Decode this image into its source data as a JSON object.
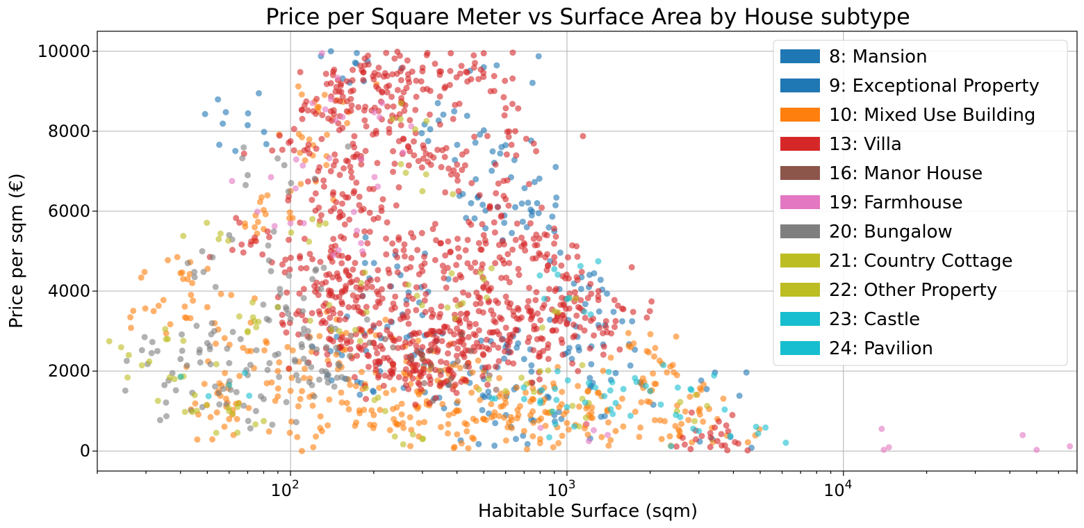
{
  "chart_data": {
    "type": "scatter",
    "title": "Price per Square Meter vs Surface Area by House subtype",
    "xlabel": "Habitable Surface (sqm)",
    "ylabel": "Price per sqm (€)",
    "x_scale": "log",
    "xlim": [
      20,
      70000
    ],
    "ylim": [
      -500,
      10500
    ],
    "x_ticks": [
      {
        "value": 100,
        "base": "10",
        "exp": "2"
      },
      {
        "value": 1000,
        "base": "10",
        "exp": "3"
      },
      {
        "value": 10000,
        "base": "10",
        "exp": "4"
      }
    ],
    "y_ticks": [
      {
        "value": 0,
        "label": "0"
      },
      {
        "value": 2000,
        "label": "2000"
      },
      {
        "value": 4000,
        "label": "4000"
      },
      {
        "value": 6000,
        "label": "6000"
      },
      {
        "value": 8000,
        "label": "8000"
      },
      {
        "value": 10000,
        "label": "10000"
      }
    ],
    "grid": true,
    "legend_position": "top-right",
    "series": [
      {
        "name": "8: Mansion",
        "color": "#1f77b4",
        "points": [
          [
            120,
            2600
          ],
          [
            200,
            3100
          ],
          [
            280,
            2400
          ],
          [
            350,
            2000
          ],
          [
            500,
            1800
          ],
          [
            600,
            2600
          ],
          [
            800,
            1500
          ],
          [
            3200,
            1550
          ],
          [
            3900,
            350
          ],
          [
            140,
            10000
          ],
          [
            500,
            9600
          ],
          [
            900,
            5500
          ]
        ]
      },
      {
        "name": "9: Exceptional Property",
        "color": "#1f77b4",
        "points": [
          [
            70,
            8150
          ],
          [
            190,
            9750
          ],
          [
            320,
            8050
          ],
          [
            450,
            6200
          ],
          [
            600,
            7650
          ],
          [
            650,
            6100
          ],
          [
            780,
            6200
          ],
          [
            1200,
            4100
          ],
          [
            1300,
            3150
          ],
          [
            1500,
            1950
          ],
          [
            700,
            2300
          ],
          [
            300,
            3400
          ],
          [
            400,
            1200
          ],
          [
            900,
            900
          ],
          [
            1100,
            2600
          ],
          [
            250,
            4400
          ],
          [
            180,
            1700
          ],
          [
            550,
            700
          ]
        ]
      },
      {
        "name": "10: Mixed Use Building",
        "color": "#ff7f0e",
        "points": [
          [
            32,
            3500
          ],
          [
            40,
            4450
          ],
          [
            50,
            3600
          ],
          [
            65,
            1200
          ],
          [
            80,
            5550
          ],
          [
            100,
            6500
          ],
          [
            110,
            7850
          ],
          [
            125,
            8600
          ],
          [
            160,
            1200
          ],
          [
            200,
            900
          ],
          [
            240,
            700
          ],
          [
            300,
            1500
          ],
          [
            350,
            600
          ],
          [
            400,
            1000
          ],
          [
            500,
            800
          ],
          [
            600,
            1200
          ],
          [
            700,
            500
          ],
          [
            800,
            300
          ],
          [
            1000,
            700
          ],
          [
            1200,
            900
          ],
          [
            1500,
            500
          ],
          [
            1700,
            2600
          ],
          [
            2000,
            1500
          ],
          [
            2500,
            1900
          ],
          [
            3000,
            1000
          ],
          [
            3500,
            800
          ],
          [
            2200,
            300
          ],
          [
            1400,
            1000
          ],
          [
            900,
            1600
          ],
          [
            150,
            2200
          ],
          [
            180,
            3000
          ],
          [
            270,
            1900
          ],
          [
            330,
            2500
          ],
          [
            420,
            1800
          ],
          [
            460,
            300
          ],
          [
            750,
            1300
          ],
          [
            110,
            1500
          ],
          [
            90,
            2000
          ],
          [
            70,
            2500
          ],
          [
            55,
            1500
          ],
          [
            60,
            800
          ],
          [
            130,
            500
          ]
        ]
      },
      {
        "name": "13: Villa",
        "color": "#d62728",
        "points": [
          [
            100,
            7750
          ],
          [
            140,
            9200
          ],
          [
            140,
            8500
          ],
          [
            140,
            7000
          ],
          [
            140,
            6000
          ],
          [
            140,
            5000
          ],
          [
            140,
            4000
          ],
          [
            140,
            3000
          ],
          [
            160,
            8500
          ],
          [
            180,
            7300
          ],
          [
            200,
            9300
          ],
          [
            220,
            9450
          ],
          [
            250,
            9500
          ],
          [
            260,
            8650
          ],
          [
            300,
            9500
          ],
          [
            380,
            9950
          ],
          [
            450,
            9300
          ],
          [
            500,
            9950
          ],
          [
            230,
            8250
          ],
          [
            270,
            7500
          ],
          [
            320,
            7400
          ],
          [
            400,
            6900
          ],
          [
            500,
            5400
          ],
          [
            600,
            6300
          ],
          [
            650,
            8000
          ],
          [
            700,
            5200
          ],
          [
            900,
            4850
          ],
          [
            1100,
            3600
          ],
          [
            1300,
            4000
          ],
          [
            1500,
            3250
          ],
          [
            1000,
            3200
          ],
          [
            850,
            3800
          ],
          [
            750,
            3400
          ],
          [
            550,
            4700
          ],
          [
            480,
            3500
          ],
          [
            420,
            2800
          ],
          [
            360,
            3100
          ],
          [
            300,
            2600
          ],
          [
            250,
            3300
          ],
          [
            210,
            2900
          ],
          [
            190,
            2400
          ],
          [
            170,
            3600
          ],
          [
            160,
            2700
          ],
          [
            150,
            4300
          ],
          [
            300,
            4500
          ],
          [
            350,
            5200
          ],
          [
            240,
            5000
          ],
          [
            200,
            5800
          ],
          [
            170,
            6500
          ],
          [
            180,
            4100
          ],
          [
            230,
            2000
          ],
          [
            260,
            1800
          ],
          [
            320,
            2200
          ],
          [
            380,
            2000
          ],
          [
            440,
            3900
          ],
          [
            520,
            2100
          ],
          [
            620,
            2900
          ],
          [
            720,
            3600
          ],
          [
            820,
            2500
          ],
          [
            120,
            4800
          ],
          [
            110,
            3400
          ],
          [
            75,
            5250
          ],
          [
            2800,
            50
          ],
          [
            3300,
            100
          ],
          [
            3500,
            250
          ],
          [
            210,
            3700
          ],
          [
            330,
            3000
          ],
          [
            270,
            2200
          ],
          [
            410,
            4400
          ],
          [
            460,
            2600
          ],
          [
            580,
            3300
          ]
        ]
      },
      {
        "name": "16: Manor House",
        "color": "#8c564b",
        "points": [
          [
            220,
            2800
          ],
          [
            300,
            2300
          ],
          [
            380,
            1800
          ],
          [
            450,
            2500
          ]
        ]
      },
      {
        "name": "19: Farmhouse",
        "color": "#e377c2",
        "points": [
          [
            130,
            9950
          ],
          [
            140,
            8800
          ],
          [
            85,
            6850
          ],
          [
            100,
            5700
          ],
          [
            210,
            8350
          ],
          [
            180,
            7300
          ],
          [
            180,
            5200
          ],
          [
            1200,
            250
          ],
          [
            14000,
            30
          ],
          [
            50000,
            30
          ]
        ]
      },
      {
        "name": "20: Bungalow",
        "color": "#7f7f7f",
        "points": [
          [
            35,
            1650
          ],
          [
            33,
            2500
          ],
          [
            40,
            2300
          ],
          [
            45,
            4350
          ],
          [
            50,
            2700
          ],
          [
            55,
            1450
          ],
          [
            60,
            5400
          ],
          [
            70,
            6900
          ],
          [
            75,
            1000
          ],
          [
            80,
            1300
          ],
          [
            85,
            4500
          ],
          [
            90,
            3600
          ],
          [
            95,
            7150
          ],
          [
            100,
            3300
          ],
          [
            110,
            2600
          ],
          [
            120,
            4300
          ],
          [
            130,
            2000
          ],
          [
            140,
            3100
          ],
          [
            160,
            1800
          ],
          [
            70,
            1900
          ],
          [
            60,
            2200
          ],
          [
            48,
            1100
          ],
          [
            52,
            3200
          ],
          [
            66,
            2800
          ],
          [
            88,
            2400
          ],
          [
            105,
            1900
          ],
          [
            115,
            2200
          ],
          [
            135,
            2600
          ]
        ]
      },
      {
        "name": "21: Country Cottage",
        "color": "#bcbd22",
        "points": [
          [
            26,
            2400
          ],
          [
            36,
            2800
          ],
          [
            45,
            1400
          ],
          [
            55,
            5300
          ],
          [
            70,
            3000
          ],
          [
            80,
            750
          ],
          [
            120,
            5800
          ],
          [
            180,
            4200
          ],
          [
            250,
            8300
          ],
          [
            300,
            6500
          ],
          [
            500,
            4300
          ],
          [
            800,
            2000
          ],
          [
            1200,
            1200
          ],
          [
            2500,
            1000
          ]
        ]
      },
      {
        "name": "22: Other Property",
        "color": "#bcbd22",
        "points": [
          [
            38,
            1800
          ],
          [
            60,
            1000
          ],
          [
            90,
            3600
          ],
          [
            150,
            3000
          ],
          [
            220,
            1000
          ],
          [
            300,
            300
          ],
          [
            420,
            3700
          ],
          [
            600,
            1500
          ],
          [
            900,
            3500
          ]
        ]
      },
      {
        "name": "23: Castle",
        "color": "#17becf",
        "points": [
          [
            60,
            1650
          ],
          [
            900,
            4550
          ],
          [
            1000,
            3800
          ],
          [
            1200,
            1700
          ],
          [
            1600,
            1550
          ],
          [
            2800,
            1550
          ],
          [
            3000,
            500
          ]
        ]
      },
      {
        "name": "24: Pavilion",
        "color": "#17becf",
        "points": [
          [
            700,
            1300
          ],
          [
            800,
            1200
          ],
          [
            1000,
            1100
          ],
          [
            1500,
            1200
          ],
          [
            2000,
            1500
          ],
          [
            3900,
            380
          ]
        ]
      }
    ]
  }
}
